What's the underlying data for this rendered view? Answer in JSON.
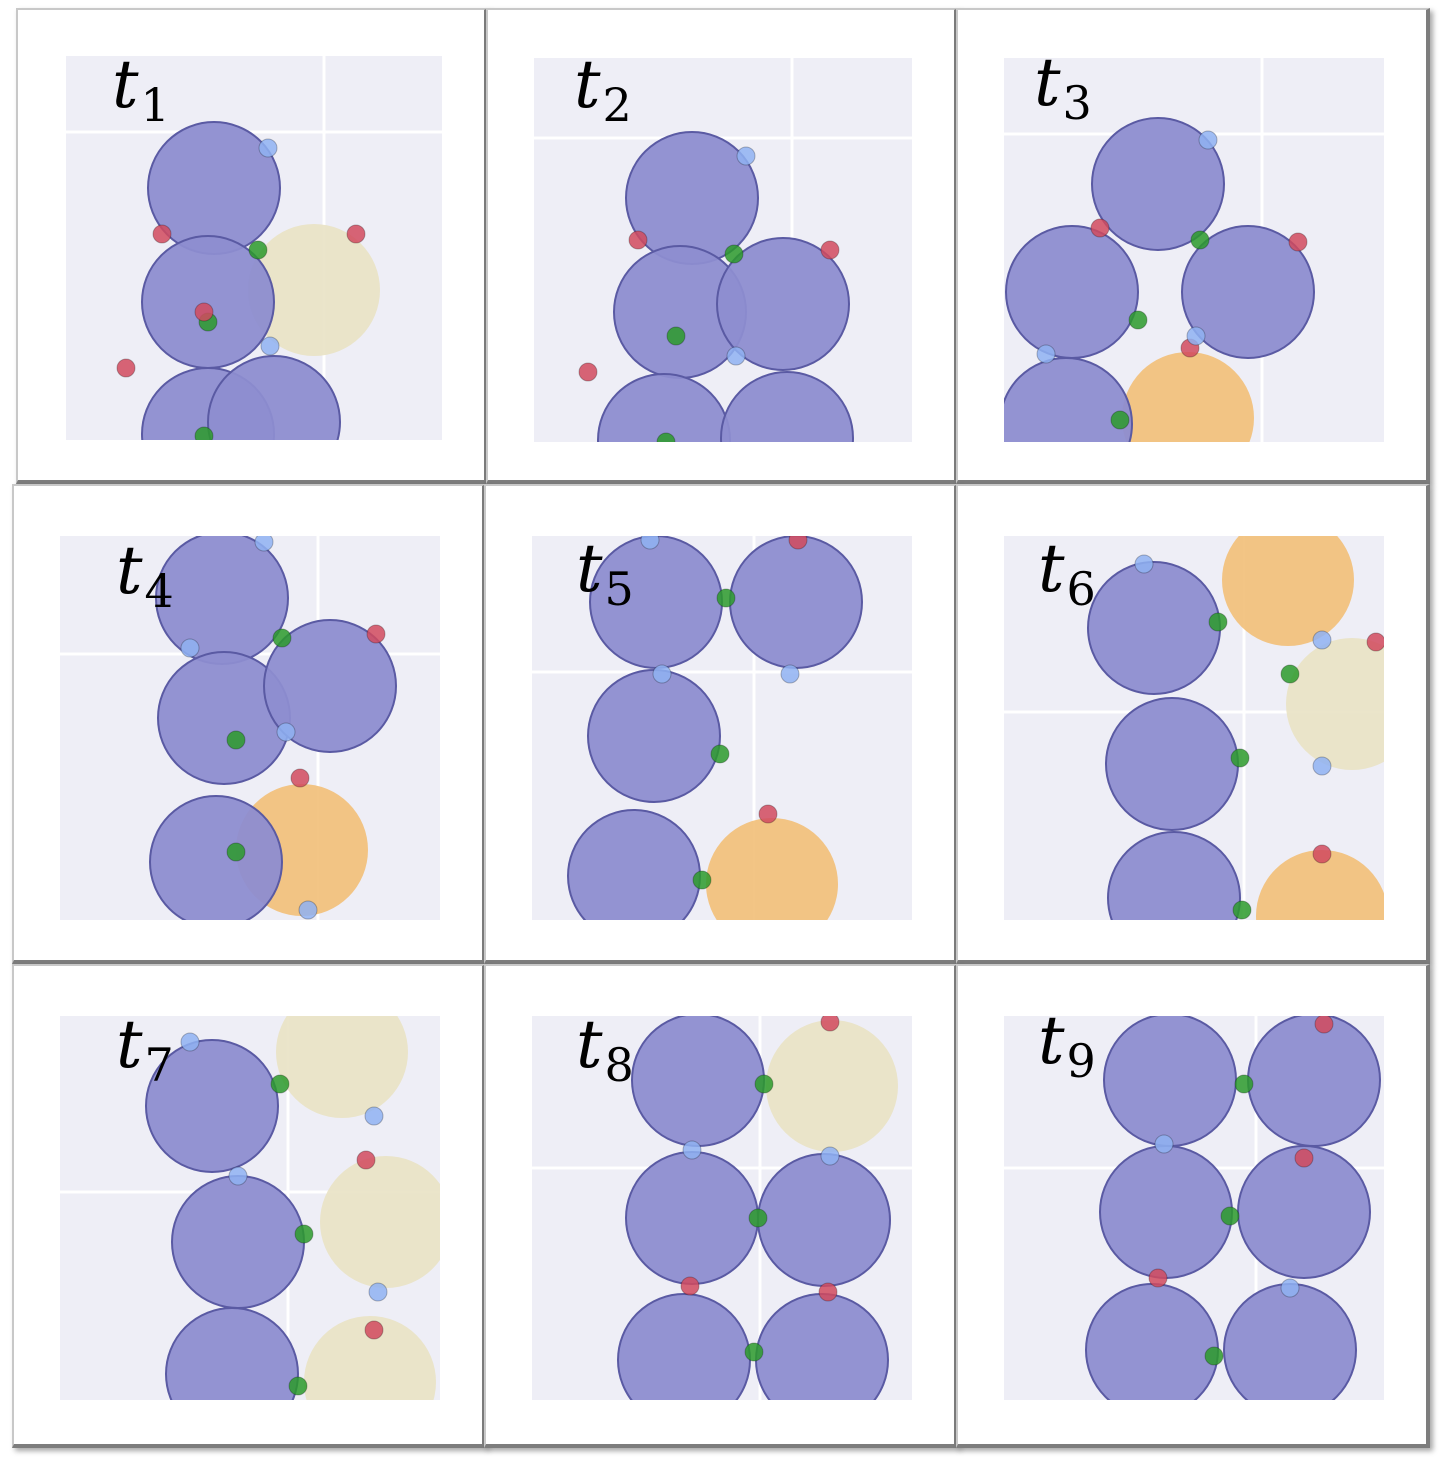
{
  "colors": {
    "agent": "#8d8dd0",
    "agent_stroke": "#5a5aa3",
    "object_orange": "#f2bf78",
    "object_beige": "#e9e2c4",
    "port_green": "#2c9a2c",
    "port_red": "#d14a5e",
    "port_blue": "#8fb2f2",
    "background": "#eeeef6",
    "gridline": "#ffffff"
  },
  "icons": {
    "agent": "agent-circle",
    "object": "object-circle",
    "port": "port-dot"
  },
  "panels": [
    {
      "symbol": "t",
      "index": "1"
    },
    {
      "symbol": "t",
      "index": "2"
    },
    {
      "symbol": "t",
      "index": "3"
    },
    {
      "symbol": "t",
      "index": "4"
    },
    {
      "symbol": "t",
      "index": "5"
    },
    {
      "symbol": "t",
      "index": "6"
    },
    {
      "symbol": "t",
      "index": "7"
    },
    {
      "symbol": "t",
      "index": "8"
    },
    {
      "symbol": "t",
      "index": "9"
    }
  ]
}
